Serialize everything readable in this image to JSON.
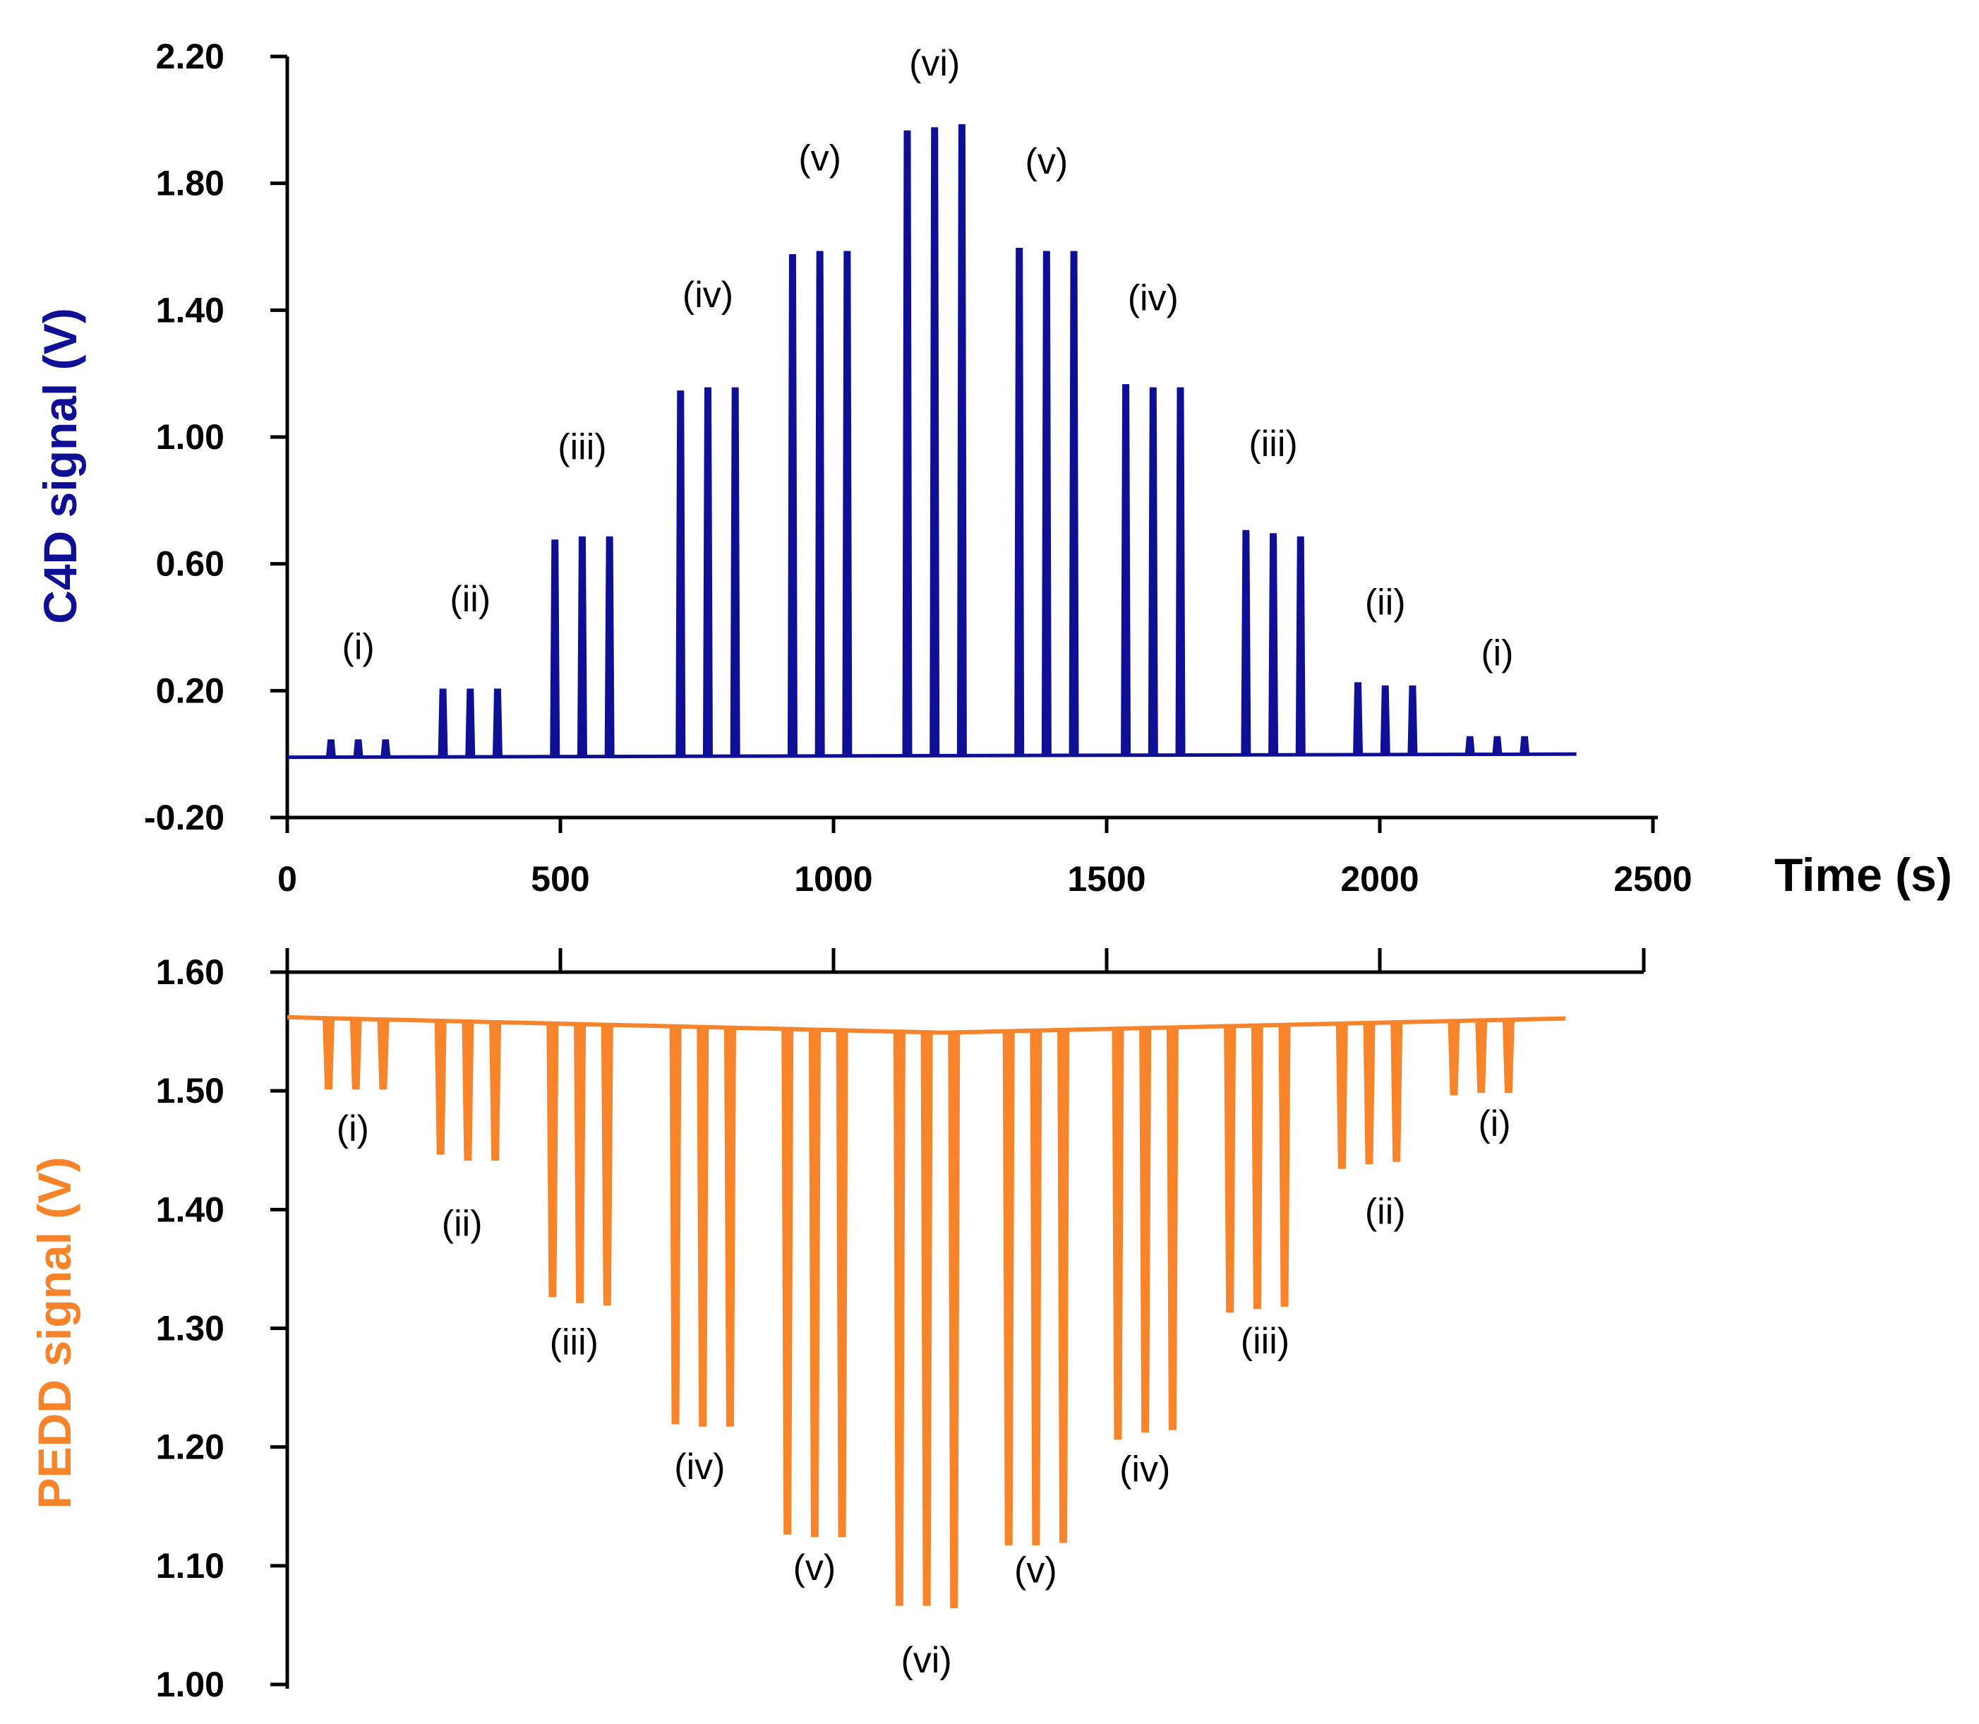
{
  "chart_data": [
    {
      "type": "line",
      "name": "C4D",
      "ylabel": "C4D signal (V)",
      "xlabel": "Time (s)",
      "color": "#0f0f96",
      "ylim": [
        -0.2,
        2.2
      ],
      "xlim": [
        0,
        2500
      ],
      "yticks": [
        "2.20",
        "1.80",
        "1.40",
        "1.00",
        "0.60",
        "0.20",
        "-0.20"
      ],
      "xticks": [
        "0",
        "500",
        "1000",
        "1500",
        "2000",
        "2500"
      ],
      "baseline": {
        "start": -0.01,
        "end": 0.0
      },
      "trace_end": 2360,
      "peaks": [
        {
          "t": 80,
          "v": 0.04
        },
        {
          "t": 130,
          "v": 0.04
        },
        {
          "t": 180,
          "v": 0.04
        },
        {
          "t": 285,
          "v": 0.2
        },
        {
          "t": 335,
          "v": 0.2
        },
        {
          "t": 385,
          "v": 0.2
        },
        {
          "t": 490,
          "v": 0.67
        },
        {
          "t": 540,
          "v": 0.68
        },
        {
          "t": 590,
          "v": 0.68
        },
        {
          "t": 720,
          "v": 1.14
        },
        {
          "t": 770,
          "v": 1.15
        },
        {
          "t": 820,
          "v": 1.15
        },
        {
          "t": 925,
          "v": 1.57
        },
        {
          "t": 975,
          "v": 1.58
        },
        {
          "t": 1025,
          "v": 1.58
        },
        {
          "t": 1135,
          "v": 1.96
        },
        {
          "t": 1185,
          "v": 1.97
        },
        {
          "t": 1235,
          "v": 1.98
        },
        {
          "t": 1340,
          "v": 1.59
        },
        {
          "t": 1390,
          "v": 1.58
        },
        {
          "t": 1440,
          "v": 1.58
        },
        {
          "t": 1535,
          "v": 1.16
        },
        {
          "t": 1585,
          "v": 1.15
        },
        {
          "t": 1635,
          "v": 1.15
        },
        {
          "t": 1755,
          "v": 0.7
        },
        {
          "t": 1805,
          "v": 0.69
        },
        {
          "t": 1855,
          "v": 0.68
        },
        {
          "t": 1960,
          "v": 0.22
        },
        {
          "t": 2010,
          "v": 0.21
        },
        {
          "t": 2060,
          "v": 0.21
        },
        {
          "t": 2165,
          "v": 0.05
        },
        {
          "t": 2215,
          "v": 0.05
        },
        {
          "t": 2265,
          "v": 0.05
        }
      ],
      "annotations": [
        {
          "text": "(i)",
          "t": 130,
          "v": 0.3
        },
        {
          "text": "(ii)",
          "t": 335,
          "v": 0.45
        },
        {
          "text": "(iii)",
          "t": 540,
          "v": 0.93
        },
        {
          "text": "(iv)",
          "t": 770,
          "v": 1.41
        },
        {
          "text": "(v)",
          "t": 975,
          "v": 1.84
        },
        {
          "text": "(vi)",
          "t": 1185,
          "v": 2.14
        },
        {
          "text": "(v)",
          "t": 1390,
          "v": 1.83
        },
        {
          "text": "(iv)",
          "t": 1585,
          "v": 1.4
        },
        {
          "text": "(iii)",
          "t": 1805,
          "v": 0.94
        },
        {
          "text": "(ii)",
          "t": 2010,
          "v": 0.44
        },
        {
          "text": "(i)",
          "t": 2215,
          "v": 0.28
        }
      ]
    },
    {
      "type": "line",
      "name": "PEDD",
      "ylabel": "PEDD signal (V)",
      "color": "#f7832a",
      "ylim": [
        1.0,
        1.6
      ],
      "xlim": [
        0,
        2500
      ],
      "yticks": [
        "1.60",
        "1.50",
        "1.40",
        "1.30",
        "1.20",
        "1.10",
        "1.00"
      ],
      "baseline": {
        "start": 1.562,
        "mid": 1.549,
        "end": 1.561
      },
      "trace_end": 2340,
      "peaks": [
        {
          "t": 75,
          "v": 1.503
        },
        {
          "t": 125,
          "v": 1.503
        },
        {
          "t": 175,
          "v": 1.503
        },
        {
          "t": 280,
          "v": 1.448
        },
        {
          "t": 330,
          "v": 1.443
        },
        {
          "t": 380,
          "v": 1.443
        },
        {
          "t": 485,
          "v": 1.328
        },
        {
          "t": 535,
          "v": 1.323
        },
        {
          "t": 585,
          "v": 1.321
        },
        {
          "t": 710,
          "v": 1.221
        },
        {
          "t": 760,
          "v": 1.219
        },
        {
          "t": 810,
          "v": 1.219
        },
        {
          "t": 915,
          "v": 1.128
        },
        {
          "t": 965,
          "v": 1.126
        },
        {
          "t": 1015,
          "v": 1.126
        },
        {
          "t": 1120,
          "v": 1.068
        },
        {
          "t": 1170,
          "v": 1.068
        },
        {
          "t": 1220,
          "v": 1.066
        },
        {
          "t": 1320,
          "v": 1.119
        },
        {
          "t": 1370,
          "v": 1.119
        },
        {
          "t": 1420,
          "v": 1.121
        },
        {
          "t": 1520,
          "v": 1.208
        },
        {
          "t": 1570,
          "v": 1.214
        },
        {
          "t": 1620,
          "v": 1.216
        },
        {
          "t": 1725,
          "v": 1.315
        },
        {
          "t": 1775,
          "v": 1.318
        },
        {
          "t": 1825,
          "v": 1.32
        },
        {
          "t": 1930,
          "v": 1.436
        },
        {
          "t": 1980,
          "v": 1.44
        },
        {
          "t": 2030,
          "v": 1.442
        },
        {
          "t": 2135,
          "v": 1.498
        },
        {
          "t": 2185,
          "v": 1.5
        },
        {
          "t": 2235,
          "v": 1.5
        }
      ],
      "annotations": [
        {
          "text": "(i)",
          "t": 120,
          "v": 1.458
        },
        {
          "text": "(ii)",
          "t": 320,
          "v": 1.378
        },
        {
          "text": "(iii)",
          "t": 525,
          "v": 1.278
        },
        {
          "text": "(iv)",
          "t": 755,
          "v": 1.173
        },
        {
          "text": "(v)",
          "t": 965,
          "v": 1.088
        },
        {
          "text": "(vi)",
          "t": 1170,
          "v": 1.01
        },
        {
          "text": "(v)",
          "t": 1370,
          "v": 1.086
        },
        {
          "text": "(iv)",
          "t": 1570,
          "v": 1.171
        },
        {
          "text": "(iii)",
          "t": 1790,
          "v": 1.279
        },
        {
          "text": "(ii)",
          "t": 2010,
          "v": 1.388
        },
        {
          "text": "(i)",
          "t": 2210,
          "v": 1.462
        }
      ]
    }
  ]
}
